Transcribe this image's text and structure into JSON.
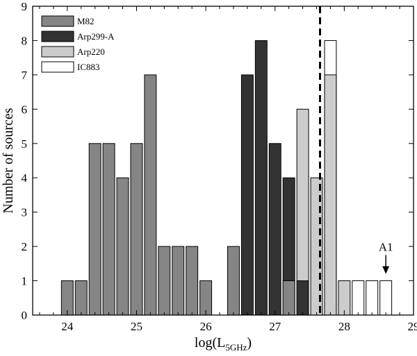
{
  "chart_data": {
    "type": "bar",
    "title": "",
    "xlabel": "log(L",
    "xlabel_sub": "5GHz",
    "xlabel_close": ")",
    "ylabel": "Number of sources",
    "xlim": [
      23.5,
      29
    ],
    "ylim": [
      0,
      9
    ],
    "bin_width": 0.2,
    "x_ticks": [
      "24",
      "25",
      "26",
      "27",
      "28",
      "29"
    ],
    "y_ticks": [
      "0",
      "1",
      "2",
      "3",
      "4",
      "5",
      "6",
      "7",
      "8",
      "9"
    ],
    "legend_position": "top-left",
    "series": [
      {
        "name": "M82",
        "color": "#858585",
        "bars": [
          {
            "x": 24.0,
            "count": 1
          },
          {
            "x": 24.2,
            "count": 1
          },
          {
            "x": 24.4,
            "count": 5
          },
          {
            "x": 24.6,
            "count": 5
          },
          {
            "x": 24.8,
            "count": 4
          },
          {
            "x": 25.0,
            "count": 5
          },
          {
            "x": 25.2,
            "count": 7
          },
          {
            "x": 25.4,
            "count": 2
          },
          {
            "x": 25.6,
            "count": 2
          },
          {
            "x": 25.8,
            "count": 2
          },
          {
            "x": 26.0,
            "count": 1
          },
          {
            "x": 26.4,
            "count": 2
          },
          {
            "x": 27.2,
            "count": 1
          }
        ]
      },
      {
        "name": "Arp299-A",
        "color": "#333333",
        "bars": [
          {
            "x": 26.6,
            "count": 7
          },
          {
            "x": 26.8,
            "count": 8
          },
          {
            "x": 27.0,
            "count": 5
          },
          {
            "x": 27.2,
            "count": 4
          },
          {
            "x": 27.4,
            "count": 1
          }
        ]
      },
      {
        "name": "Arp220",
        "color": "#cccccc",
        "bars": [
          {
            "x": 27.4,
            "count": 6
          },
          {
            "x": 27.6,
            "count": 4
          },
          {
            "x": 27.8,
            "count": 7
          },
          {
            "x": 28.0,
            "count": 1
          }
        ]
      },
      {
        "name": "IC883",
        "color": "#ffffff",
        "bars": [
          {
            "x": 27.8,
            "count": 8
          },
          {
            "x": 28.2,
            "count": 1
          },
          {
            "x": 28.4,
            "count": 1
          },
          {
            "x": 28.6,
            "count": 1
          }
        ]
      }
    ],
    "threshold_line": {
      "x": 27.65,
      "style": "dashed"
    },
    "annotations": [
      {
        "text": "A1",
        "x": 28.6,
        "y_from": 1.75,
        "y_to": 1.2
      }
    ]
  }
}
